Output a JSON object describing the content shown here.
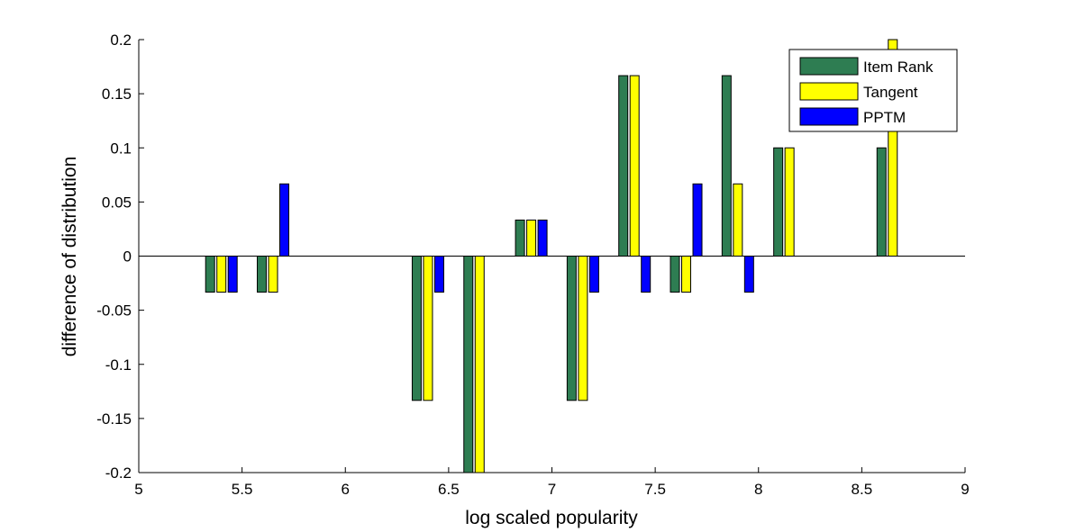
{
  "chart_data": {
    "type": "bar",
    "title": "",
    "xlabel": "log scaled popularity",
    "ylabel": "difference of distribution",
    "xlim": [
      5,
      9
    ],
    "ylim": [
      -0.2,
      0.2
    ],
    "xticks": [
      "5",
      "5.5",
      "6",
      "6.5",
      "7",
      "7.5",
      "8",
      "8.5",
      "9"
    ],
    "yticks": [
      "-0.2",
      "-0.15",
      "-0.1",
      "-0.05",
      "0",
      "0.05",
      "0.1",
      "0.15",
      "0.2"
    ],
    "x": [
      5.4,
      5.65,
      6.4,
      6.65,
      6.9,
      7.15,
      7.4,
      7.65,
      7.9,
      8.15,
      8.65
    ],
    "series": [
      {
        "name": "Item Rank",
        "color": "#2e7d52",
        "values": [
          -0.0333,
          -0.0333,
          -0.1333,
          -0.2,
          0.0333,
          -0.1333,
          0.1667,
          -0.0333,
          0.1667,
          0.1,
          0.1
        ]
      },
      {
        "name": "Tangent",
        "color": "#ffff00",
        "values": [
          -0.0333,
          -0.0333,
          -0.1333,
          -0.2,
          0.0333,
          -0.1333,
          0.1667,
          -0.0333,
          0.0667,
          0.1,
          0.2
        ]
      },
      {
        "name": "PPTM",
        "color": "#0000ff",
        "values": [
          -0.0333,
          0.0667,
          -0.0333,
          0,
          0.0333,
          -0.0333,
          -0.0333,
          0.0667,
          -0.0333,
          0,
          0
        ]
      }
    ],
    "legend_position": "top-right",
    "grid": false
  }
}
